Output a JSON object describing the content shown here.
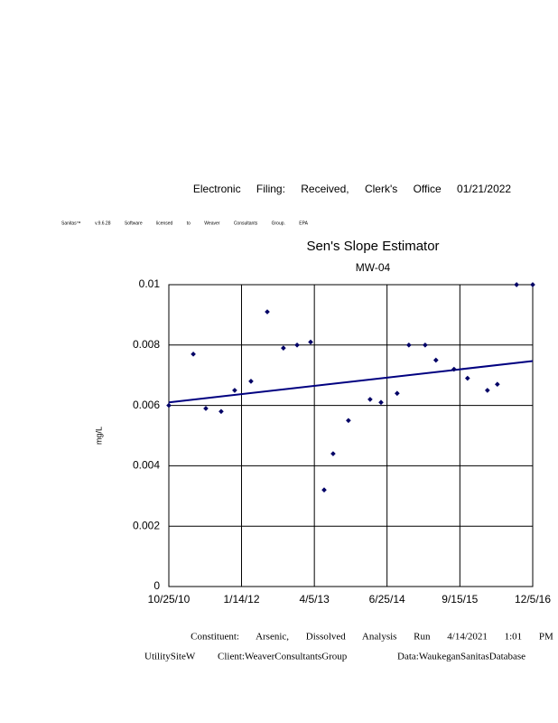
{
  "header": {
    "filing": "Electronic Filing: Received, Clerk's Office 01/21/2022",
    "software": "Sanitas™ v.9.6.28 Software licensed to Weaver Consultants Group. EPA"
  },
  "chart_data": {
    "type": "scatter",
    "title": "Sen's Slope Estimator",
    "subtitle": "MW-04",
    "y_label": "mg/L",
    "x": [
      "2010-10-25",
      "2011-03-24",
      "2011-06-09",
      "2011-09-11",
      "2011-12-03",
      "2012-03-12",
      "2012-06-20",
      "2012-09-27",
      "2012-12-20",
      "2013-03-13",
      "2013-06-04",
      "2013-07-29",
      "2013-10-31",
      "2014-03-13",
      "2014-05-19",
      "2014-08-26",
      "2014-11-06",
      "2015-02-14",
      "2015-04-21",
      "2015-08-10",
      "2015-11-01",
      "2016-03-02",
      "2016-05-02",
      "2016-08-28",
      "2016-12-05"
    ],
    "values": [
      0.006,
      0.0077,
      0.0059,
      0.0058,
      0.0065,
      0.0068,
      0.0091,
      0.0079,
      0.008,
      0.0081,
      0.0032,
      0.0044,
      0.0055,
      0.0062,
      0.0061,
      0.0064,
      0.008,
      0.008,
      0.0075,
      0.0072,
      0.0069,
      0.0065,
      0.0067,
      0.01,
      0.01
    ],
    "color": "#000066",
    "trend": {
      "x": [
        "2010-10-25",
        "2016-12-05"
      ],
      "values": [
        0.0061,
        0.00747
      ],
      "color": "#000080"
    },
    "xlim": [
      "2010-10-25",
      "2016-12-05"
    ],
    "xticks": [
      {
        "value": "2010-10-25",
        "label": "10/25/10"
      },
      {
        "value": "2012-01-14",
        "label": "1/14/12"
      },
      {
        "value": "2013-04-05",
        "label": "4/5/13"
      },
      {
        "value": "2014-06-25",
        "label": "6/25/14"
      },
      {
        "value": "2015-09-15",
        "label": "9/15/15"
      },
      {
        "value": "2016-12-05",
        "label": "12/5/16"
      }
    ],
    "ylim": [
      0,
      0.01
    ],
    "yticks": [
      0,
      0.002,
      0.004,
      0.006,
      0.008,
      0.01
    ],
    "grid": true
  },
  "footer": {
    "line1": "Constituent: Arsenic, Dissolved Analysis Run 4/14/2021 1:01 PM",
    "site": "UtilitySiteW",
    "client": "Client:WeaverConsultantsGroup",
    "data": "Data:WaukeganSanitasDatabase"
  }
}
